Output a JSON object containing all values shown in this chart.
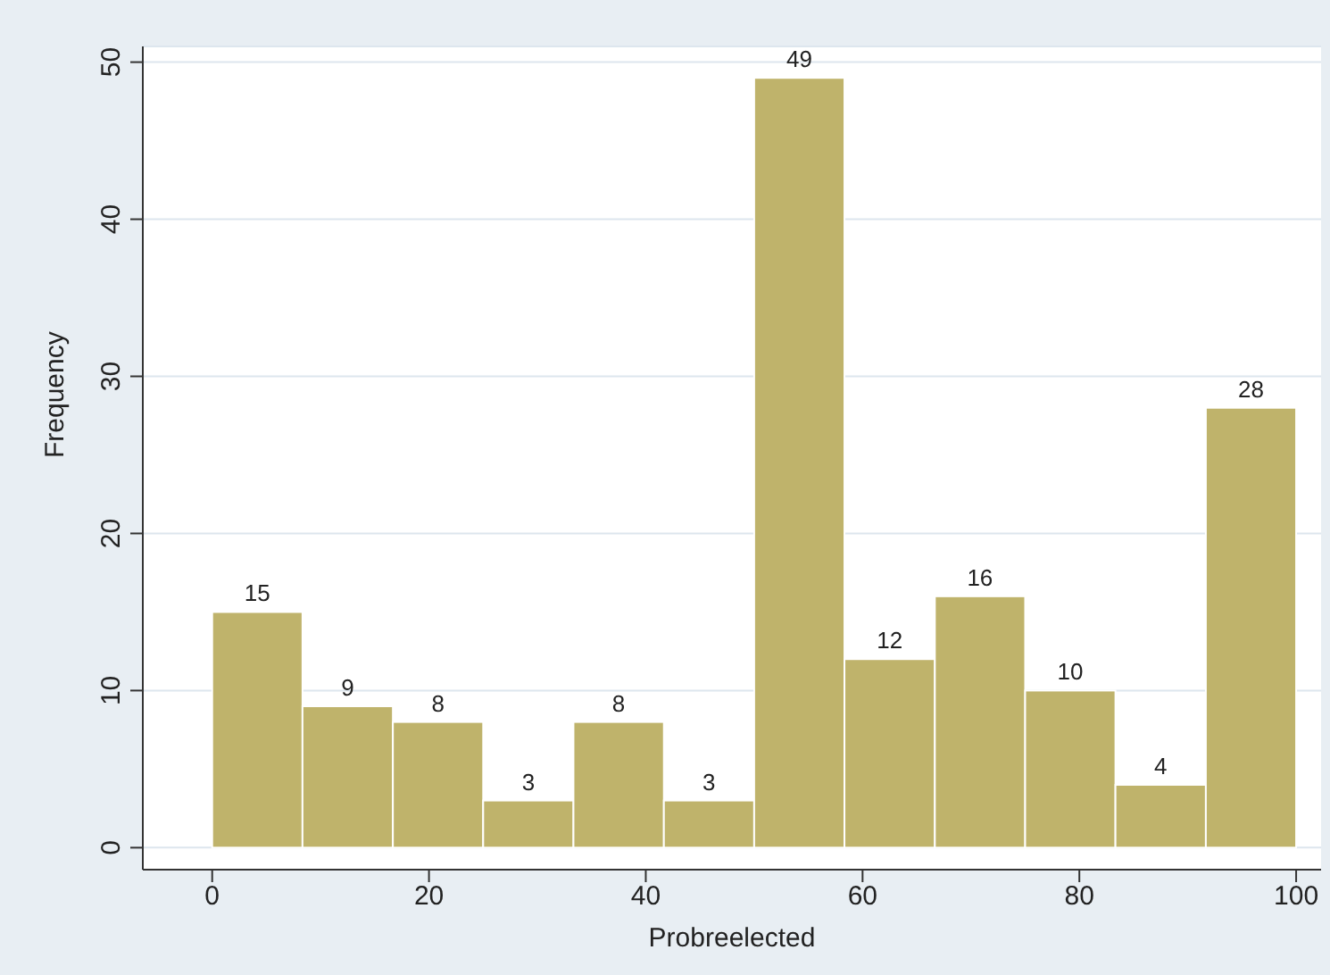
{
  "chart_data": {
    "type": "histogram",
    "xlabel": "Probreelected",
    "ylabel": "Frequency",
    "bins": [
      0,
      8.33,
      16.67,
      25,
      33.33,
      41.67,
      50,
      58.33,
      66.67,
      75,
      83.33,
      91.67,
      100
    ],
    "values": [
      15,
      9,
      8,
      3,
      8,
      3,
      49,
      12,
      16,
      10,
      4,
      28
    ],
    "color": "#bfb36b",
    "data_labels": true,
    "grid": "y",
    "xlim": [
      -6.4,
      102.3
    ],
    "xticks": [
      0,
      20,
      40,
      60,
      80,
      100
    ],
    "ylim": [
      -1.4,
      51
    ],
    "yticks": [
      0,
      10,
      20,
      30,
      40,
      50
    ]
  }
}
